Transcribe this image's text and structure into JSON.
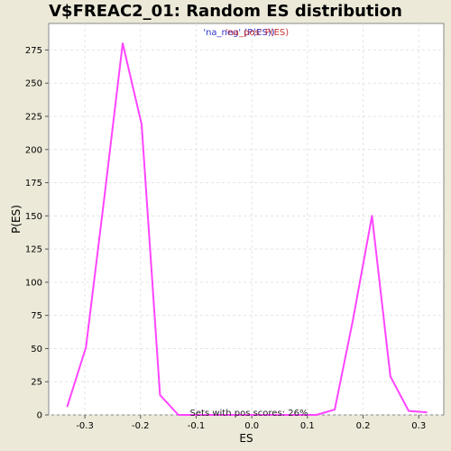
{
  "chart_data": {
    "type": "line",
    "title": "V$FREAC2_01: Random ES distribution",
    "xlabel": "ES",
    "ylabel": "P(ES)",
    "xlim": [
      -0.365,
      0.345
    ],
    "ylim": [
      0,
      295
    ],
    "x_ticks": [
      -0.3,
      -0.2,
      -0.1,
      0.0,
      0.1,
      0.2,
      0.3
    ],
    "x_tick_labels": [
      "-0.3",
      "-0.2",
      "-0.1",
      "0.0",
      "0.1",
      "0.2",
      "0.3"
    ],
    "y_ticks": [
      0,
      25,
      50,
      75,
      100,
      125,
      150,
      175,
      200,
      225,
      250,
      275
    ],
    "y_tick_labels": [
      "0",
      "25",
      "50",
      "75",
      "100",
      "125",
      "150",
      "175",
      "200",
      "225",
      "250",
      "275"
    ],
    "grid": true,
    "legend_position": "top-center",
    "legend": [
      {
        "label": "'na_neg' (P(ES))",
        "color": "#3333cc"
      },
      {
        "label": "'na_pos' P(ES)",
        "color": "#cc3333"
      }
    ],
    "annotation": "Sets with pos scores: 26%",
    "series": [
      {
        "color": "#ff44ff",
        "x": [
          -0.332,
          -0.298,
          -0.265,
          -0.232,
          -0.198,
          -0.165,
          -0.132,
          -0.099,
          -0.066,
          -0.033,
          0.0,
          0.033,
          0.066,
          0.099,
          0.116,
          0.149,
          0.182,
          0.216,
          0.249,
          0.282,
          0.315
        ],
        "y": [
          6,
          51,
          164,
          280,
          219,
          15,
          0,
          0,
          0,
          0,
          0,
          0,
          0,
          0,
          0,
          4,
          72,
          150,
          29,
          3,
          2
        ]
      }
    ]
  }
}
